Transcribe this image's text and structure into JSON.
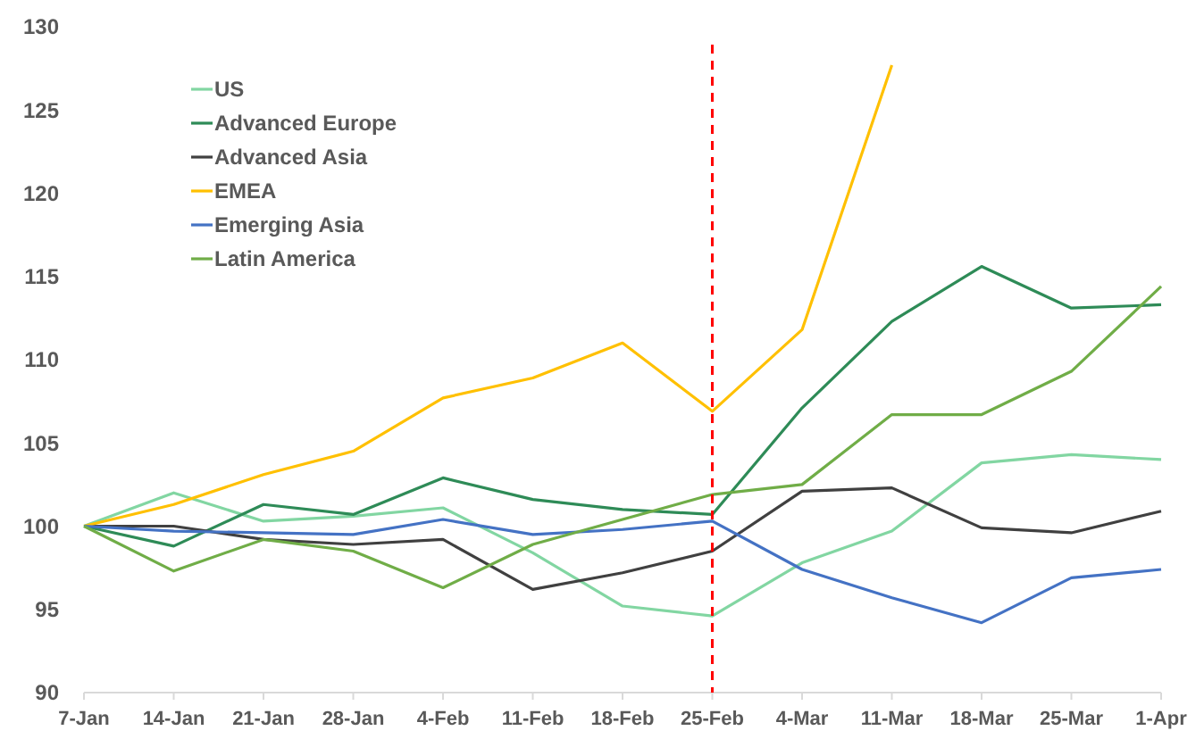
{
  "chart_data": {
    "type": "line",
    "categories": [
      "7-Jan",
      "14-Jan",
      "21-Jan",
      "28-Jan",
      "4-Feb",
      "11-Feb",
      "18-Feb",
      "25-Feb",
      "4-Mar",
      "11-Mar",
      "18-Mar",
      "25-Mar",
      "1-Apr"
    ],
    "series": [
      {
        "name": "US",
        "color": "#82d6a2",
        "values": [
          100,
          102,
          100.3,
          100.6,
          101.1,
          98.4,
          95.2,
          94.6,
          97.8,
          99.7,
          103.8,
          104.3,
          104.0
        ]
      },
      {
        "name": "Advanced Europe",
        "color": "#2e8b57",
        "values": [
          100,
          98.8,
          101.3,
          100.7,
          102.9,
          101.6,
          101.0,
          100.7,
          107.1,
          112.3,
          115.6,
          113.1,
          113.3
        ]
      },
      {
        "name": "Advanced Asia",
        "color": "#404040",
        "values": [
          100,
          100.0,
          99.2,
          98.9,
          99.2,
          96.2,
          97.2,
          98.5,
          102.1,
          102.3,
          99.9,
          99.6,
          100.9
        ]
      },
      {
        "name": "EMEA",
        "color": "#ffc000",
        "values": [
          100,
          101.3,
          103.1,
          104.5,
          107.7,
          108.9,
          111.0,
          106.9,
          111.8,
          127.7,
          null,
          null,
          null
        ]
      },
      {
        "name": "Emerging Asia",
        "color": "#4472c4",
        "values": [
          100,
          99.7,
          99.6,
          99.5,
          100.4,
          99.5,
          99.8,
          100.3,
          97.4,
          95.7,
          94.2,
          96.9,
          97.4
        ]
      },
      {
        "name": "Latin America",
        "color": "#70ad47",
        "values": [
          100,
          97.3,
          99.2,
          98.5,
          96.3,
          98.9,
          100.4,
          101.9,
          102.5,
          106.7,
          106.7,
          109.3,
          114.4
        ]
      }
    ],
    "ylim": [
      90,
      130
    ],
    "yticks": [
      90,
      95,
      100,
      105,
      110,
      115,
      120,
      125,
      130
    ],
    "grid": false,
    "legend": "top left",
    "line_style": "solid",
    "marker": "none",
    "ref_lines": [
      {
        "axis": "x",
        "value": "25-Feb",
        "color": "#ff0000",
        "line_style": "dashed"
      }
    ]
  }
}
